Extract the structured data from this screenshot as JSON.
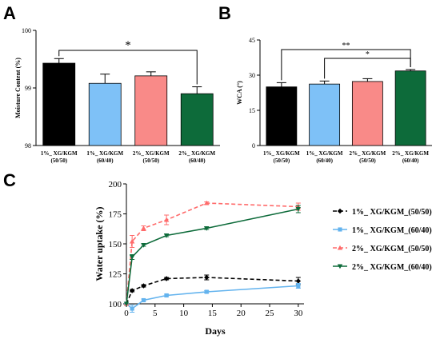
{
  "chart_data": [
    {
      "panel": "A",
      "type": "bar",
      "categories": [
        [
          "1%_ XG/KGM",
          "(50/50)"
        ],
        [
          "1%_ XG/KGM",
          "(60/40)"
        ],
        [
          "2%_ XG/KGM",
          "(50/50)"
        ],
        [
          "2%_ XG/KGM",
          "(60/40)"
        ]
      ],
      "values": [
        99.43,
        99.08,
        99.21,
        98.9
      ],
      "errors": [
        0.08,
        0.16,
        0.07,
        0.12
      ],
      "colors": [
        "#000000",
        "#7ec1f7",
        "#f98a88",
        "#0d6b3a"
      ],
      "ylabel": "Moisture Content (%)",
      "ylim": [
        98,
        100
      ],
      "yticks": [
        "98",
        "99",
        "100"
      ],
      "significance": [
        {
          "from": 0,
          "to": 3,
          "label": "*"
        }
      ]
    },
    {
      "panel": "B",
      "type": "bar",
      "categories": [
        [
          "1%_ XG/KGM",
          "(50/50)"
        ],
        [
          "1%_ XG/KGM",
          "(60/40)"
        ],
        [
          "2%_ XG/KGM",
          "(50/50)"
        ],
        [
          "2%_ XG/KGM",
          "(60/40)"
        ]
      ],
      "values": [
        25.0,
        26.2,
        27.3,
        31.8
      ],
      "errors": [
        1.8,
        1.3,
        1.2,
        0.6
      ],
      "colors": [
        "#000000",
        "#7ec1f7",
        "#f98a88",
        "#0d6b3a"
      ],
      "ylabel": "WCA (°)",
      "ylim": [
        0,
        45
      ],
      "yticks": [
        "0",
        "15",
        "30",
        "45"
      ],
      "significance": [
        {
          "from": 0,
          "to": 3,
          "label": "**"
        },
        {
          "from": 1,
          "to": 3,
          "label": "*"
        }
      ]
    },
    {
      "panel": "C",
      "type": "line",
      "xlabel": "Days",
      "ylabel": "Water uptake (%)",
      "xlim": [
        0,
        31
      ],
      "ylim": [
        100,
        200
      ],
      "xticks": [
        "0",
        "5",
        "10",
        "15",
        "20",
        "25",
        "30"
      ],
      "yticks": [
        "100",
        "125",
        "150",
        "175",
        "200"
      ],
      "series": [
        {
          "name": "1%_ XG/KGM_(50/50)",
          "color": "#000000",
          "dash": "5,3",
          "marker": "diamond",
          "x": [
            0,
            1,
            3,
            7,
            14,
            30
          ],
          "y": [
            100,
            111,
            115,
            121,
            122,
            119
          ],
          "err": [
            0,
            1,
            1,
            1,
            2,
            3
          ]
        },
        {
          "name": "1%_ XG/KGM_(60/40)",
          "color": "#63b3ee",
          "dash": "",
          "marker": "square",
          "x": [
            0,
            1,
            3,
            7,
            14,
            30
          ],
          "y": [
            100,
            96,
            103,
            107,
            110,
            115
          ],
          "err": [
            0,
            3,
            1,
            1,
            1,
            2
          ]
        },
        {
          "name": "2%_ XG/KGM_(50/50)",
          "color": "#ff6b6b",
          "dash": "5,3",
          "marker": "triangle",
          "x": [
            0,
            1,
            3,
            7,
            14,
            30
          ],
          "y": [
            100,
            152,
            163,
            170,
            184,
            181
          ],
          "err": [
            0,
            5,
            2,
            4,
            1,
            3
          ]
        },
        {
          "name": "2%_ XG/KGM_(60/40)",
          "color": "#0d6b3a",
          "dash": "",
          "marker": "triangle-down",
          "x": [
            0,
            1,
            3,
            7,
            14,
            30
          ],
          "y": [
            100,
            139,
            149,
            157,
            163,
            179
          ],
          "err": [
            0,
            2,
            1,
            1,
            1,
            3
          ]
        }
      ]
    }
  ],
  "panel_labels": {
    "a": "A",
    "b": "B",
    "c": "C"
  }
}
